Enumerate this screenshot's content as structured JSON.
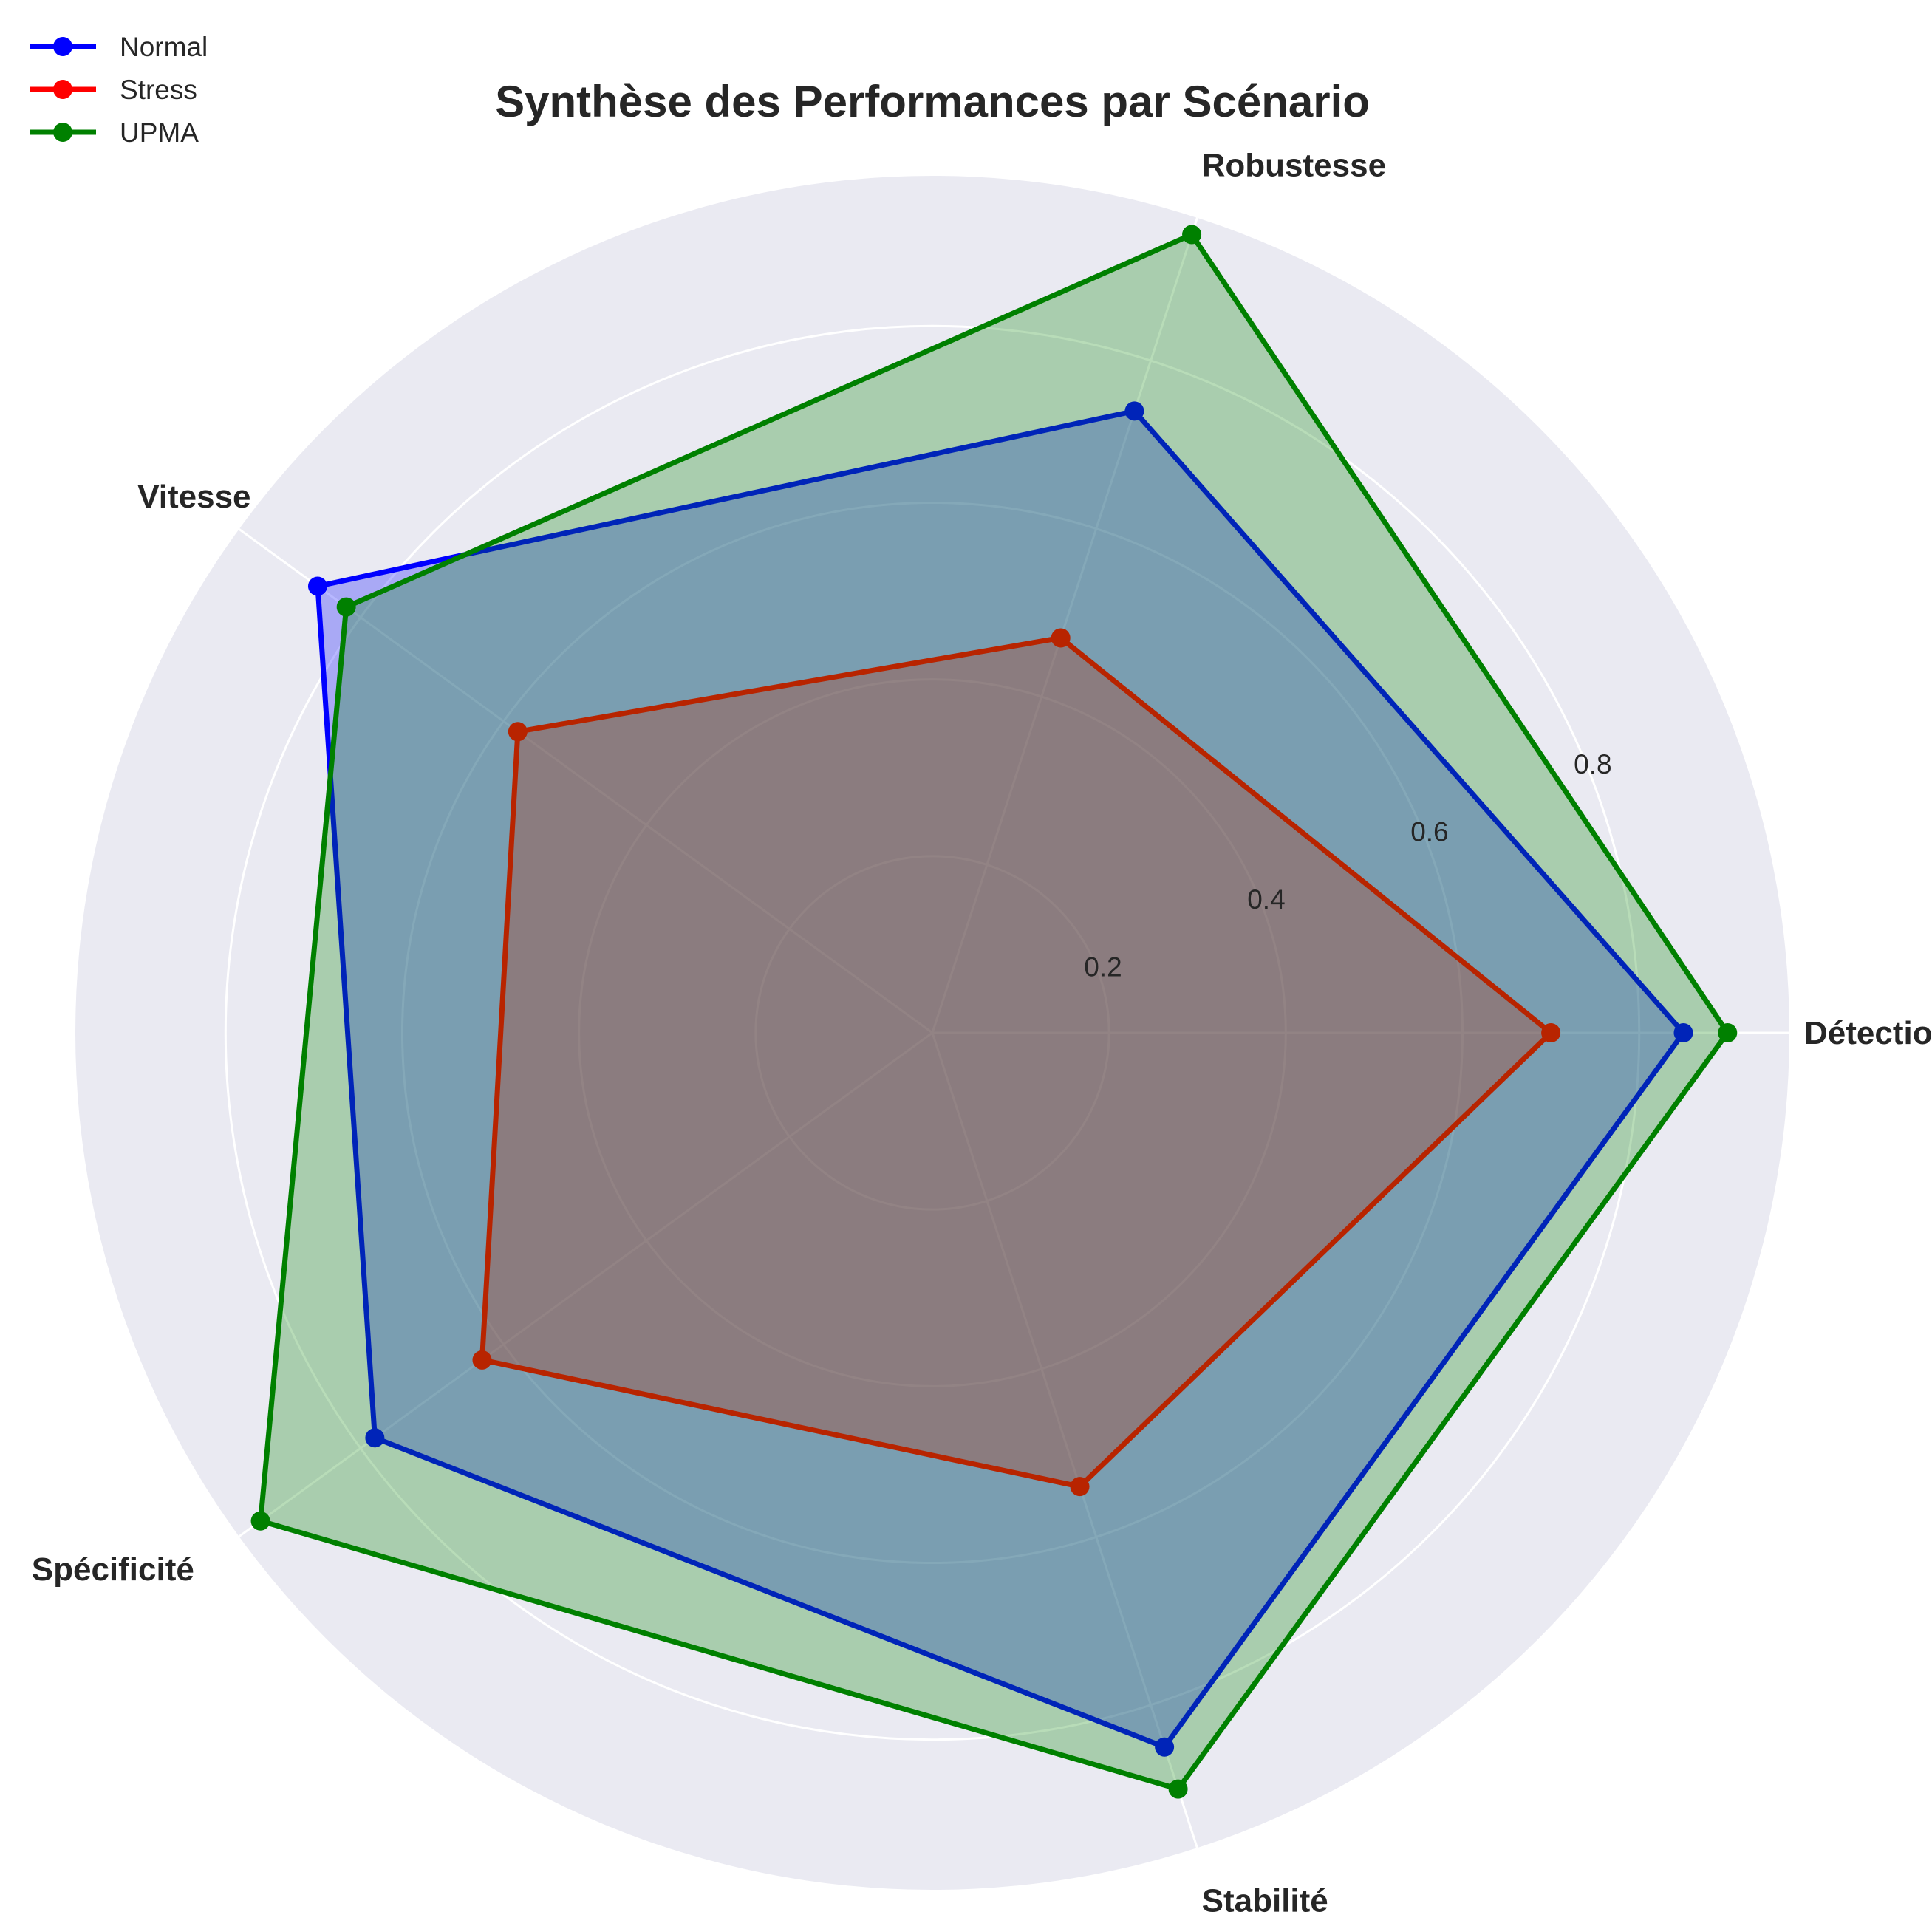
{
  "chart_data": {
    "type": "radar",
    "title": "Synthèse des Performances par Scénario",
    "categories": [
      "Détection",
      "Robustesse",
      "Vitesse",
      "Spécificité",
      "Stabilité"
    ],
    "rmax": 0.97,
    "grid": true,
    "radial_ticks": [
      {
        "value": 0.2,
        "label": "0.2"
      },
      {
        "value": 0.4,
        "label": "0.4"
      },
      {
        "value": 0.6,
        "label": "0.6"
      },
      {
        "value": 0.8,
        "label": "0.8"
      }
    ],
    "legend_position": "top-left",
    "series": [
      {
        "name": "Normal",
        "color": "#0000ff",
        "fill_opacity": 0.28,
        "values": [
          0.85,
          0.74,
          0.86,
          0.78,
          0.85
        ]
      },
      {
        "name": "Stress",
        "color": "#ff0000",
        "fill_opacity": 0.28,
        "values": [
          0.7,
          0.47,
          0.58,
          0.63,
          0.54
        ]
      },
      {
        "name": "UPMA",
        "color": "#008000",
        "fill_opacity": 0.28,
        "values": [
          0.9,
          0.95,
          0.82,
          0.94,
          0.9
        ]
      }
    ],
    "colors": {
      "polar_background": "#eaeaf2",
      "grid": "#ffffff",
      "text": "#262626"
    }
  }
}
